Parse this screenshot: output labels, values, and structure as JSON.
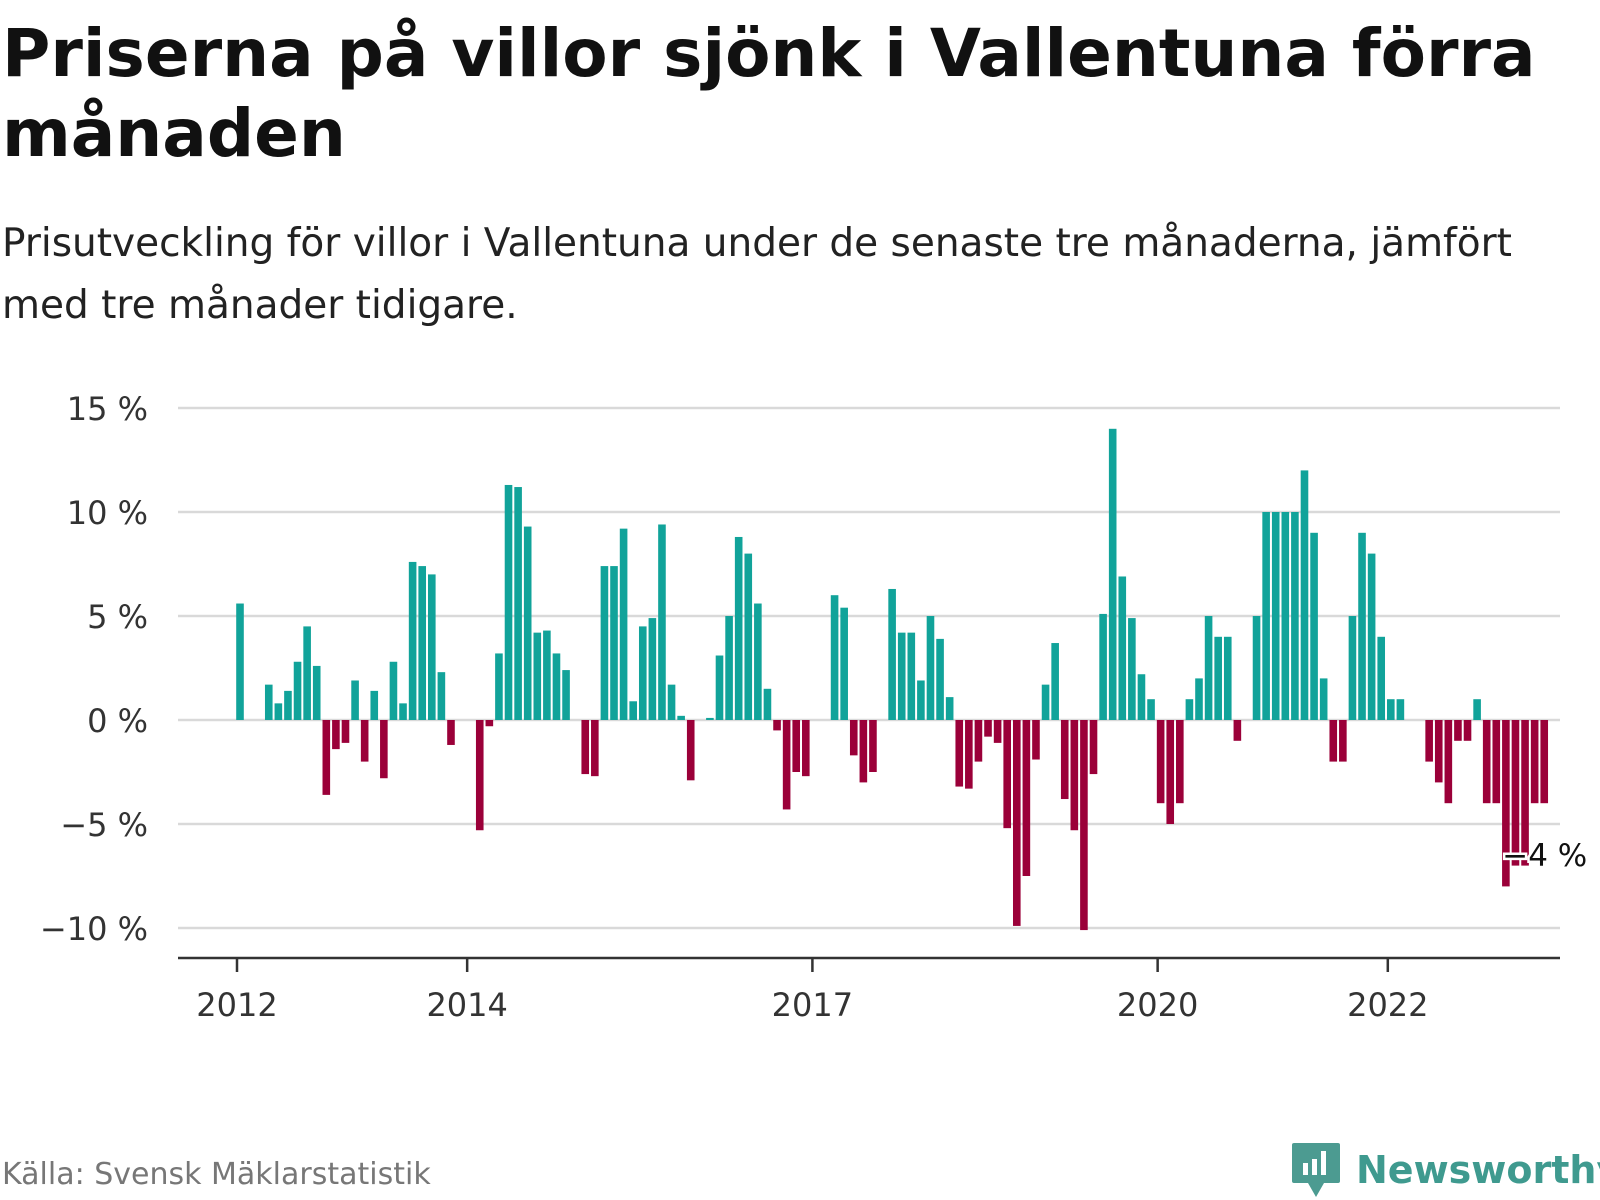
{
  "title": "Priserna på villor sjönk i Vallentuna förra månaden",
  "subtitle": "Prisutveckling för villor i Vallentuna under de senaste tre månaderna, jämfört med tre månader tidigare.",
  "source": "Källa: Svensk Mäklarstatistik",
  "brand": {
    "name": "Newsworthy",
    "icon": "newsworthy-logo-icon"
  },
  "colors": {
    "positive": "#11a39a",
    "negative": "#9b0039",
    "grid": "#d9d9d9",
    "axis": "#333333"
  },
  "chart_data": {
    "type": "bar",
    "title": "Priserna på villor sjönk i Vallentuna förra månaden",
    "subtitle": "Prisutveckling för villor i Vallentuna under de senaste tre månaderna, jämfört med tre månader tidigare.",
    "xlabel": "",
    "ylabel": "",
    "ylim": [
      -11.5,
      15
    ],
    "yticks": [
      15,
      10,
      5,
      0,
      -5,
      -10
    ],
    "ytick_labels": [
      "15 %",
      "10 %",
      "5 %",
      "0 %",
      "−5 %",
      "−10 %"
    ],
    "x_start": "2012-01",
    "xticks": [
      "2012-01",
      "2014-01",
      "2017-01",
      "2020-01",
      "2022-01"
    ],
    "xtick_labels": [
      "2012",
      "2014",
      "2017",
      "2020",
      "2022"
    ],
    "grid": true,
    "last_value_label": "−4 %",
    "values": [
      5.6,
      null,
      null,
      1.7,
      0.8,
      1.4,
      2.8,
      4.5,
      2.6,
      -3.6,
      -1.4,
      -1.1,
      1.9,
      -2,
      1.4,
      -2.8,
      2.8,
      0.8,
      7.6,
      7.4,
      7,
      2.3,
      -1.2,
      null,
      null,
      -5.3,
      -0.3,
      3.2,
      11.3,
      11.2,
      9.3,
      4.2,
      4.3,
      3.2,
      2.4,
      null,
      -2.6,
      -2.7,
      7.4,
      7.4,
      9.2,
      0.9,
      4.5,
      4.9,
      9.4,
      1.7,
      0.2,
      -2.9,
      null,
      0.1,
      3.1,
      5,
      8.8,
      8,
      5.6,
      1.5,
      -0.5,
      -4.3,
      -2.5,
      -2.7,
      null,
      null,
      6,
      5.4,
      -1.7,
      -3,
      -2.5,
      null,
      6.3,
      4.2,
      4.2,
      1.9,
      5,
      3.9,
      1.1,
      -3.2,
      -3.3,
      -2,
      -0.8,
      -1.1,
      -5.2,
      -9.9,
      -7.5,
      -1.9,
      1.7,
      3.7,
      -3.8,
      -5.3,
      -10.1,
      -2.6,
      5.1,
      14,
      6.9,
      4.9,
      2.2,
      1,
      -4,
      -5,
      -4,
      1,
      2,
      5,
      4,
      4,
      -1,
      null,
      5,
      10,
      10,
      10,
      10,
      12,
      9,
      2,
      -2,
      -2,
      5,
      9,
      8,
      4,
      1,
      1,
      null,
      null,
      -2,
      -3,
      -4,
      -1,
      -1,
      1,
      -4,
      -4,
      -8,
      -7,
      -7,
      -4,
      -4
    ]
  }
}
